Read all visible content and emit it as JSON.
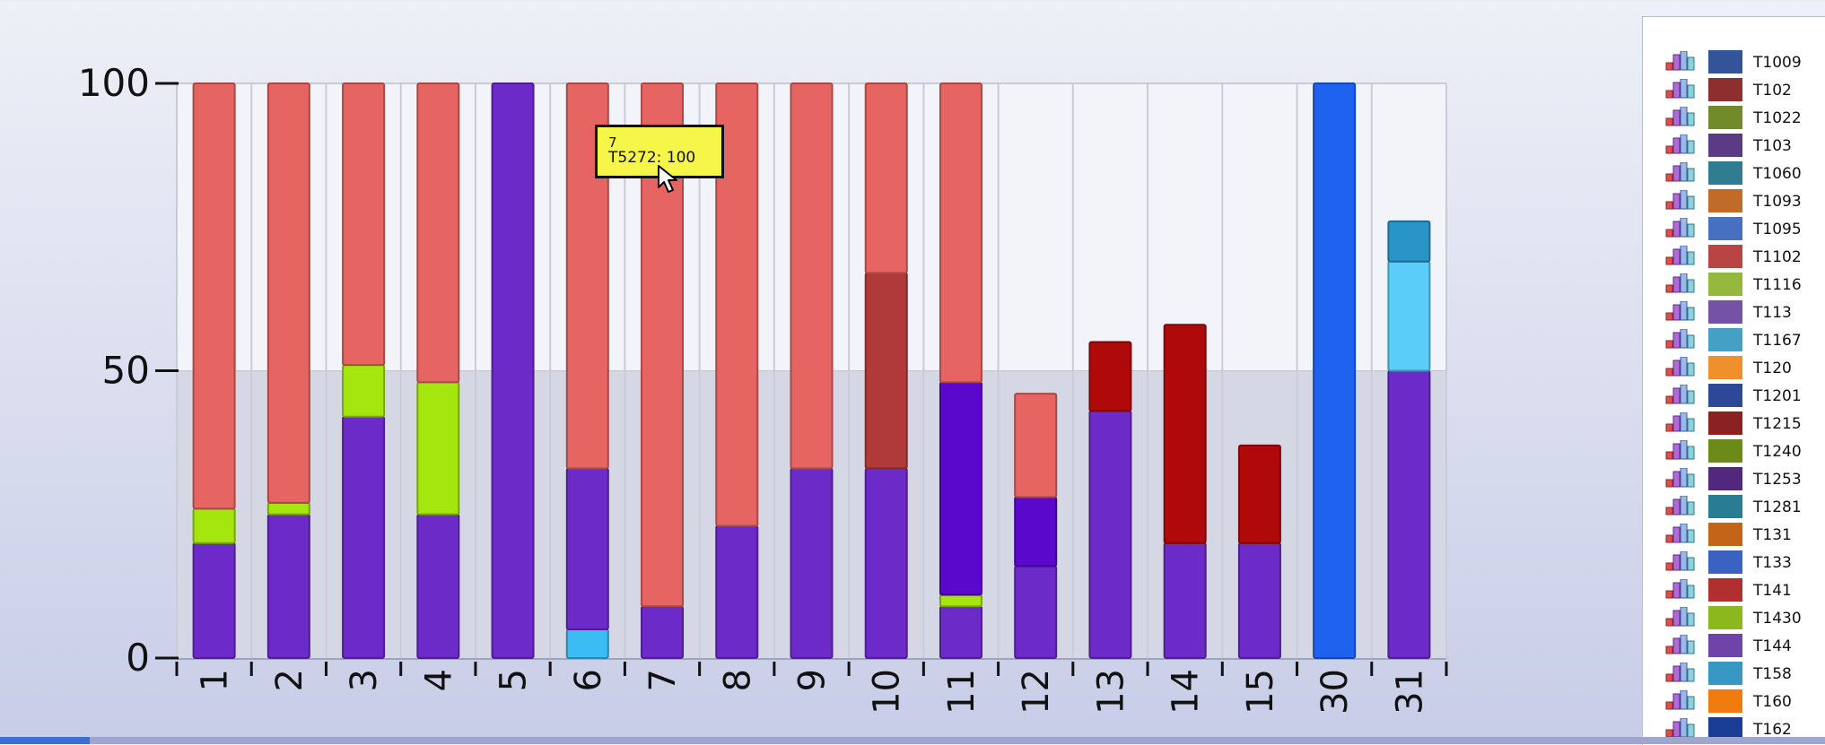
{
  "chart_data": {
    "type": "bar",
    "stacked": true,
    "categories": [
      "1",
      "2",
      "3",
      "4",
      "5",
      "6",
      "7",
      "8",
      "9",
      "10",
      "11",
      "12",
      "13",
      "14",
      "15",
      "30",
      "31"
    ],
    "ylim": [
      0,
      100
    ],
    "yticks": [
      "0",
      "50",
      "100"
    ],
    "grid": true,
    "legend_position": "right",
    "bars": [
      {
        "category": "1",
        "segments": [
          {
            "value": 20,
            "color": "#6c2ac8"
          },
          {
            "value": 6,
            "color": "#a4e60d"
          },
          {
            "value": 74,
            "color": "#e66563"
          }
        ]
      },
      {
        "category": "2",
        "segments": [
          {
            "value": 25,
            "color": "#6c2ac8"
          },
          {
            "value": 2,
            "color": "#a4e60d"
          },
          {
            "value": 73,
            "color": "#e66563"
          }
        ]
      },
      {
        "category": "3",
        "segments": [
          {
            "value": 42,
            "color": "#6c2ac8"
          },
          {
            "value": 9,
            "color": "#a4e60d"
          },
          {
            "value": 49,
            "color": "#e66563"
          }
        ]
      },
      {
        "category": "4",
        "segments": [
          {
            "value": 25,
            "color": "#6c2ac8"
          },
          {
            "value": 23,
            "color": "#a4e60d"
          },
          {
            "value": 52,
            "color": "#e66563"
          }
        ]
      },
      {
        "category": "5",
        "segments": [
          {
            "value": 100,
            "color": "#6c2ac8"
          }
        ]
      },
      {
        "category": "6",
        "segments": [
          {
            "value": 5,
            "color": "#3bbcf2"
          },
          {
            "value": 28,
            "color": "#6c2ac8"
          },
          {
            "value": 67,
            "color": "#e66563"
          }
        ]
      },
      {
        "category": "7",
        "segments": [
          {
            "value": 9,
            "color": "#6c2ac8"
          },
          {
            "value": 91,
            "color": "#e66563"
          }
        ]
      },
      {
        "category": "8",
        "segments": [
          {
            "value": 23,
            "color": "#6c2ac8"
          },
          {
            "value": 77,
            "color": "#e66563"
          }
        ]
      },
      {
        "category": "9",
        "segments": [
          {
            "value": 33,
            "color": "#6c2ac8"
          },
          {
            "value": 67,
            "color": "#e66563"
          }
        ]
      },
      {
        "category": "10",
        "segments": [
          {
            "value": 33,
            "color": "#6c2ac8"
          },
          {
            "value": 34,
            "color": "#b03a3a"
          },
          {
            "value": 33,
            "color": "#e66563"
          }
        ]
      },
      {
        "category": "11",
        "segments": [
          {
            "value": 9,
            "color": "#6c2ac8"
          },
          {
            "value": 2,
            "color": "#a4e60d"
          },
          {
            "value": 37,
            "color": "#5a08cc"
          },
          {
            "value": 52,
            "color": "#e66563"
          }
        ]
      },
      {
        "category": "12",
        "segments": [
          {
            "value": 16,
            "color": "#6c2ac8"
          },
          {
            "value": 12,
            "color": "#5a08cc"
          },
          {
            "value": 18,
            "color": "#e66563"
          }
        ]
      },
      {
        "category": "13",
        "segments": [
          {
            "value": 43,
            "color": "#6c2ac8"
          },
          {
            "value": 12,
            "color": "#b00909"
          }
        ]
      },
      {
        "category": "14",
        "segments": [
          {
            "value": 20,
            "color": "#6c2ac8"
          },
          {
            "value": 38,
            "color": "#b00909"
          }
        ]
      },
      {
        "category": "15",
        "segments": [
          {
            "value": 20,
            "color": "#6c2ac8"
          },
          {
            "value": 17,
            "color": "#b00909"
          }
        ]
      },
      {
        "category": "30",
        "segments": [
          {
            "value": 100,
            "color": "#1f62f0"
          }
        ]
      },
      {
        "category": "31",
        "segments": [
          {
            "value": 50,
            "color": "#6c2ac8"
          },
          {
            "value": 19,
            "color": "#5acdf8"
          },
          {
            "value": 7,
            "color": "#2994c8"
          }
        ]
      }
    ],
    "tooltip": {
      "category": "7",
      "text": "T5272: 100"
    },
    "legend": [
      {
        "name": "T1009",
        "color": "#34549a"
      },
      {
        "name": "T102",
        "color": "#8f2e2e"
      },
      {
        "name": "T1022",
        "color": "#718a2a"
      },
      {
        "name": "T103",
        "color": "#5c3b85"
      },
      {
        "name": "T1060",
        "color": "#307d92"
      },
      {
        "name": "T1093",
        "color": "#c06c28"
      },
      {
        "name": "T1095",
        "color": "#4770c0"
      },
      {
        "name": "T1102",
        "color": "#b84444"
      },
      {
        "name": "T1116",
        "color": "#94b83c"
      },
      {
        "name": "T113",
        "color": "#7452a6"
      },
      {
        "name": "T1167",
        "color": "#44a0c4"
      },
      {
        "name": "T120",
        "color": "#f0902c"
      },
      {
        "name": "T1201",
        "color": "#2c4896"
      },
      {
        "name": "T1215",
        "color": "#8a2222"
      },
      {
        "name": "T1240",
        "color": "#6c8a18"
      },
      {
        "name": "T1253",
        "color": "#52287e"
      },
      {
        "name": "T1281",
        "color": "#287c94"
      },
      {
        "name": "T131",
        "color": "#c46418"
      },
      {
        "name": "T133",
        "color": "#3a62c0"
      },
      {
        "name": "T141",
        "color": "#b03030"
      },
      {
        "name": "T1430",
        "color": "#8cb81e"
      },
      {
        "name": "T144",
        "color": "#6e44a8"
      },
      {
        "name": "T158",
        "color": "#3898c4"
      },
      {
        "name": "T160",
        "color": "#f07c10"
      },
      {
        "name": "T162",
        "color": "#1a3c94"
      },
      {
        "name": "",
        "color": "#8a1a1a"
      }
    ]
  }
}
